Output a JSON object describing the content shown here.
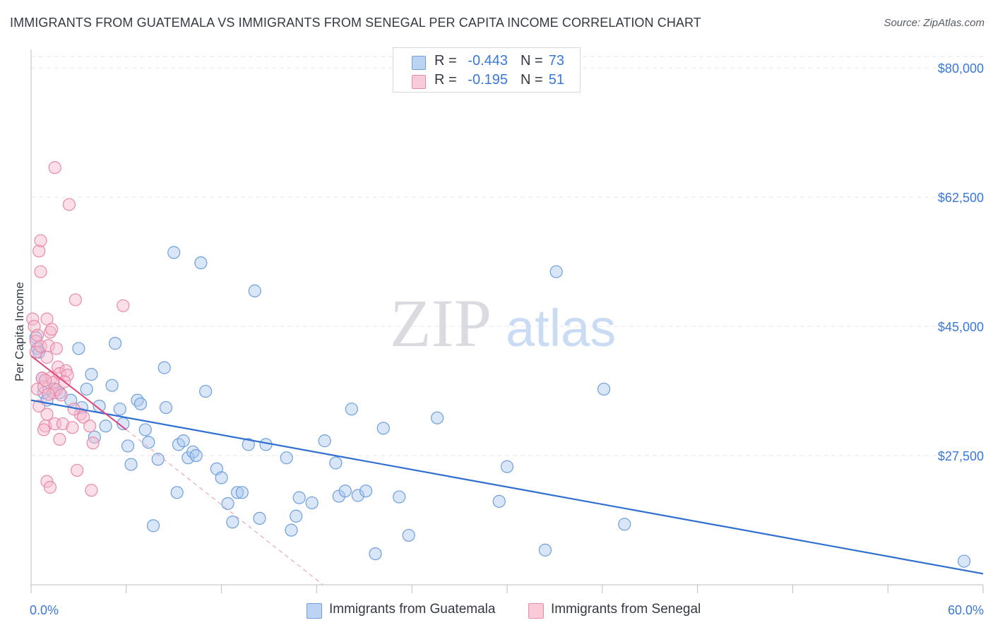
{
  "title": "IMMIGRANTS FROM GUATEMALA VS IMMIGRANTS FROM SENEGAL PER CAPITA INCOME CORRELATION CHART",
  "source": "Source: ZipAtlas.com",
  "watermark": {
    "zip": "ZIP",
    "atlas": "atlas"
  },
  "colors": {
    "blue_fill": "#a9c8f0",
    "blue_stroke": "#6f9fdc",
    "blue_line": "#2f6fd0",
    "pink_fill": "#f7b8cb",
    "pink_stroke": "#e98aa8",
    "pink_line": "#e0457a",
    "tick_label": "#3a78d8",
    "grid": "#e4e6ea"
  },
  "legend": {
    "r_label": "R =",
    "n_label": "N =",
    "rows": [
      {
        "r": "-0.443",
        "n": "73"
      },
      {
        "r": "-0.195",
        "n": "51"
      }
    ]
  },
  "chart_data": {
    "type": "scatter",
    "title": "IMMIGRANTS FROM GUATEMALA VS IMMIGRANTS FROM SENEGAL PER CAPITA INCOME CORRELATION CHART",
    "xlabel": "",
    "ylabel": "Per Capita Income",
    "xlim": [
      0,
      60
    ],
    "ylim": [
      10000,
      82500
    ],
    "x_tick_labels": [
      "0.0%",
      "60.0%"
    ],
    "y_ticks": [
      27500,
      45000,
      62500,
      80000
    ],
    "y_tick_labels": [
      "$27,500",
      "$45,000",
      "$62,500",
      "$80,000"
    ],
    "grid": true,
    "legend_position": "top-center",
    "series": [
      {
        "name": "Immigrants from Guatemala",
        "r": -0.443,
        "n": 73,
        "trend": {
          "x": [
            0,
            60
          ],
          "y": [
            35000,
            11500
          ]
        },
        "points": [
          [
            0.3,
            43500
          ],
          [
            0.4,
            42000
          ],
          [
            0.5,
            41500
          ],
          [
            0.7,
            38000
          ],
          [
            0.8,
            36000
          ],
          [
            1.0,
            35000
          ],
          [
            1.5,
            36500
          ],
          [
            1.8,
            36000
          ],
          [
            2.5,
            35000
          ],
          [
            3.0,
            42000
          ],
          [
            3.8,
            38500
          ],
          [
            3.5,
            36500
          ],
          [
            4.0,
            30000
          ],
          [
            4.3,
            34200
          ],
          [
            4.7,
            31500
          ],
          [
            5.1,
            37000
          ],
          [
            5.3,
            42700
          ],
          [
            5.6,
            33800
          ],
          [
            5.8,
            31800
          ],
          [
            6.1,
            28800
          ],
          [
            6.3,
            26300
          ],
          [
            6.7,
            35000
          ],
          [
            6.9,
            34500
          ],
          [
            7.2,
            31000
          ],
          [
            7.4,
            29300
          ],
          [
            7.7,
            18000
          ],
          [
            8.0,
            27000
          ],
          [
            8.4,
            39400
          ],
          [
            8.5,
            34000
          ],
          [
            9.0,
            55000
          ],
          [
            9.2,
            22500
          ],
          [
            9.3,
            29000
          ],
          [
            9.6,
            29500
          ],
          [
            9.9,
            27200
          ],
          [
            10.2,
            28000
          ],
          [
            10.4,
            27500
          ],
          [
            10.7,
            53600
          ],
          [
            11.0,
            36200
          ],
          [
            11.7,
            25700
          ],
          [
            12.0,
            24500
          ],
          [
            12.4,
            21000
          ],
          [
            12.7,
            18500
          ],
          [
            13.0,
            22500
          ],
          [
            13.3,
            22500
          ],
          [
            13.7,
            29000
          ],
          [
            14.1,
            49800
          ],
          [
            14.4,
            19000
          ],
          [
            14.8,
            29000
          ],
          [
            16.1,
            27200
          ],
          [
            16.4,
            17400
          ],
          [
            16.7,
            19300
          ],
          [
            16.9,
            21800
          ],
          [
            17.7,
            21100
          ],
          [
            18.5,
            29500
          ],
          [
            19.2,
            26500
          ],
          [
            19.4,
            22000
          ],
          [
            19.8,
            22700
          ],
          [
            20.2,
            33800
          ],
          [
            20.6,
            22100
          ],
          [
            21.1,
            22700
          ],
          [
            21.7,
            14200
          ],
          [
            22.2,
            31200
          ],
          [
            23.2,
            21900
          ],
          [
            23.8,
            16700
          ],
          [
            25.6,
            32600
          ],
          [
            29.5,
            21300
          ],
          [
            30.0,
            26000
          ],
          [
            32.4,
            14700
          ],
          [
            33.1,
            52400
          ],
          [
            36.1,
            36500
          ],
          [
            37.4,
            18200
          ],
          [
            58.8,
            13200
          ],
          [
            3.2,
            34000
          ]
        ]
      },
      {
        "name": "Immigrants from Senegal",
        "r": -0.195,
        "n": 51,
        "trend": {
          "x": [
            0,
            6
          ],
          "y": [
            41000,
            31000
          ]
        },
        "trend_dashed": {
          "x": [
            6,
            18.4
          ],
          "y": [
            31000,
            10000
          ]
        },
        "points": [
          [
            0.1,
            46000
          ],
          [
            0.2,
            45000
          ],
          [
            0.3,
            43000
          ],
          [
            0.3,
            41500
          ],
          [
            0.4,
            36500
          ],
          [
            0.5,
            34200
          ],
          [
            0.6,
            42300
          ],
          [
            0.5,
            55200
          ],
          [
            0.6,
            56600
          ],
          [
            0.6,
            52400
          ],
          [
            0.7,
            38000
          ],
          [
            0.8,
            36800
          ],
          [
            0.9,
            31500
          ],
          [
            1.0,
            24000
          ],
          [
            1.1,
            42400
          ],
          [
            1.2,
            23200
          ],
          [
            1.0,
            40800
          ],
          [
            1.3,
            38100
          ],
          [
            1.4,
            36000
          ],
          [
            1.5,
            31800
          ],
          [
            1.6,
            42000
          ],
          [
            1.2,
            44200
          ],
          [
            1.0,
            46000
          ],
          [
            1.5,
            66500
          ],
          [
            1.4,
            37400
          ],
          [
            1.7,
            39500
          ],
          [
            1.8,
            29700
          ],
          [
            1.8,
            38600
          ],
          [
            1.6,
            36400
          ],
          [
            2.0,
            31800
          ],
          [
            2.2,
            39000
          ],
          [
            2.3,
            38400
          ],
          [
            2.4,
            61500
          ],
          [
            2.6,
            31300
          ],
          [
            2.8,
            48600
          ],
          [
            2.9,
            25500
          ],
          [
            3.1,
            33100
          ],
          [
            3.3,
            32700
          ],
          [
            3.7,
            31500
          ],
          [
            3.8,
            22800
          ],
          [
            3.9,
            29200
          ],
          [
            5.8,
            47800
          ],
          [
            1.1,
            35800
          ],
          [
            1.3,
            44600
          ],
          [
            0.9,
            37700
          ],
          [
            1.9,
            35700
          ],
          [
            0.4,
            43800
          ],
          [
            0.8,
            31000
          ],
          [
            2.1,
            37500
          ],
          [
            1.0,
            33100
          ],
          [
            2.7,
            33800
          ]
        ]
      }
    ]
  },
  "bottom_legend": [
    "Immigrants from Guatemala",
    "Immigrants from Senegal"
  ]
}
